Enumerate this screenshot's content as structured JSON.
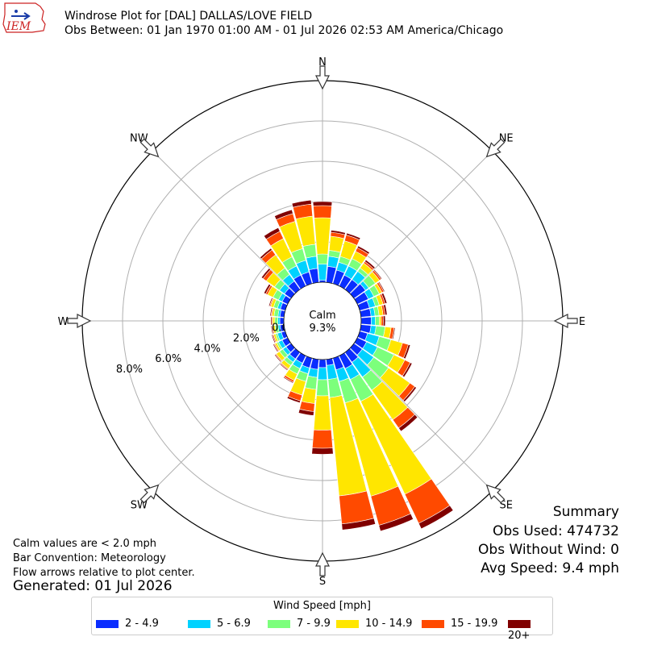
{
  "logo": {
    "text": "IEM",
    "icon": "iem-state-logo-icon"
  },
  "header": {
    "title": "Windrose Plot for [DAL] DALLAS/LOVE FIELD",
    "subtitle": "Obs Between: 01 Jan 1970 01:00 AM - 01 Jul 2026 02:53 AM America/Chicago"
  },
  "notes": {
    "calm": "Calm values are < 2.0 mph",
    "convention": "Bar Convention: Meteorology",
    "flow": "Flow arrows relative to plot center.",
    "generated": "Generated: 01 Jul 2026"
  },
  "summary": {
    "heading": "Summary",
    "obs_used": "Obs Used: 474732",
    "obs_without_wind": "Obs Without Wind: 0",
    "avg_speed": "Avg Speed: 9.4 mph"
  },
  "chart_data": {
    "type": "windrose",
    "title": "Windrose Plot for [DAL] DALLAS/LOVE FIELD",
    "calm_label": "Calm",
    "calm_value": "9.3%",
    "direction_labels": [
      "N",
      "NE",
      "E",
      "SE",
      "S",
      "SW",
      "W",
      "NW"
    ],
    "radial_ticks": [
      "0.0%",
      "2.0%",
      "4.0%",
      "6.0%",
      "8.0%"
    ],
    "radial_range": [
      0,
      10
    ],
    "legend": {
      "title": "Wind Speed [mph]",
      "bins": [
        {
          "label": "2 - 4.9",
          "color": "#0a2dff"
        },
        {
          "label": "5 - 6.9",
          "color": "#00d2ff"
        },
        {
          "label": "7 - 9.9",
          "color": "#7cff7c"
        },
        {
          "label": "10 - 14.9",
          "color": "#ffe600"
        },
        {
          "label": "15 - 19.9",
          "color": "#ff4a00"
        },
        {
          "label": "20+",
          "color": "#800000"
        }
      ]
    },
    "directions": [
      0,
      10,
      20,
      30,
      40,
      50,
      60,
      70,
      80,
      90,
      100,
      110,
      120,
      130,
      140,
      150,
      160,
      170,
      180,
      190,
      200,
      210,
      220,
      230,
      240,
      250,
      260,
      270,
      280,
      290,
      300,
      310,
      320,
      330,
      340,
      350
    ],
    "cumulative": [
      [
        0.1,
        0.9,
        1.4,
        3.2,
        3.8,
        4.0
      ],
      [
        0.8,
        1.3,
        1.6,
        2.3,
        2.5,
        2.6
      ],
      [
        0.7,
        1.1,
        1.4,
        2.2,
        2.5,
        2.6
      ],
      [
        0.6,
        1.1,
        1.5,
        1.9,
        2.1,
        2.2
      ],
      [
        0.6,
        1.1,
        1.3,
        1.6,
        1.7,
        1.8
      ],
      [
        0.7,
        0.9,
        1.3,
        1.55,
        1.65,
        1.7
      ],
      [
        0.6,
        0.9,
        1.2,
        1.35,
        1.45,
        1.5
      ],
      [
        0.5,
        0.8,
        1.0,
        1.2,
        1.3,
        1.4
      ],
      [
        0.5,
        0.7,
        0.9,
        1.1,
        1.2,
        1.3
      ],
      [
        0.5,
        0.7,
        0.9,
        1.0,
        1.1,
        1.2
      ],
      [
        0.5,
        0.75,
        1.2,
        1.5,
        1.65,
        1.7
      ],
      [
        0.4,
        1.0,
        1.6,
        2.2,
        2.5,
        2.6
      ],
      [
        0.5,
        1.1,
        2.0,
        2.6,
        2.9,
        3.0
      ],
      [
        0.5,
        1.2,
        2.1,
        3.4,
        3.7,
        3.8
      ],
      [
        0.6,
        1.5,
        2.3,
        4.1,
        4.6,
        4.8
      ],
      [
        0.7,
        1.3,
        2.5,
        7.6,
        9.2,
        9.5
      ],
      [
        0.6,
        1.2,
        2.3,
        7.1,
        8.6,
        8.9
      ],
      [
        0.3,
        1.0,
        1.9,
        6.8,
        8.2,
        8.5
      ],
      [
        0.4,
        1.0,
        1.8,
        3.5,
        4.4,
        4.7
      ],
      [
        0.5,
        0.9,
        1.5,
        2.2,
        2.6,
        2.8
      ],
      [
        0.5,
        0.8,
        1.2,
        1.9,
        2.2,
        2.3
      ],
      [
        0.4,
        0.7,
        1.0,
        1.35,
        1.45,
        1.5
      ],
      [
        0.4,
        0.6,
        0.8,
        1.0,
        1.05,
        1.1
      ],
      [
        0.3,
        0.5,
        0.7,
        0.9,
        0.95,
        1.0
      ],
      [
        0.3,
        0.5,
        0.6,
        0.7,
        0.75,
        0.8
      ],
      [
        0.2,
        0.4,
        0.5,
        0.6,
        0.65,
        0.7
      ],
      [
        0.2,
        0.3,
        0.45,
        0.55,
        0.6,
        0.65
      ],
      [
        0.2,
        0.3,
        0.45,
        0.55,
        0.6,
        0.65
      ],
      [
        0.2,
        0.3,
        0.5,
        0.6,
        0.65,
        0.7
      ],
      [
        0.25,
        0.4,
        0.6,
        0.75,
        0.8,
        0.85
      ],
      [
        0.3,
        0.5,
        0.8,
        1.1,
        1.2,
        1.3
      ],
      [
        0.4,
        0.7,
        1.0,
        1.5,
        1.7,
        1.8
      ],
      [
        0.5,
        0.9,
        1.3,
        2.1,
        2.4,
        2.5
      ],
      [
        0.6,
        1.1,
        1.6,
        2.6,
        3.0,
        3.2
      ],
      [
        0.6,
        1.2,
        1.8,
        3.2,
        3.6,
        3.8
      ],
      [
        0.7,
        1.3,
        1.9,
        3.3,
        3.9,
        4.1
      ]
    ]
  }
}
